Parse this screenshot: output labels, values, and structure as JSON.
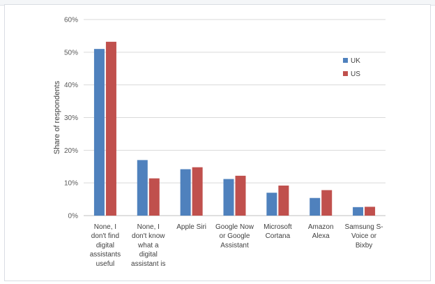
{
  "chart_data": {
    "type": "bar",
    "title": "",
    "xlabel": "",
    "ylabel": "Share of respondents",
    "ylim": [
      0,
      60
    ],
    "yticks": [
      0,
      10,
      20,
      30,
      40,
      50,
      60
    ],
    "ytick_labels": [
      "0%",
      "10%",
      "20%",
      "30%",
      "40%",
      "50%",
      "60%"
    ],
    "grid": true,
    "legend_position": "top-right",
    "categories": [
      [
        "None, I",
        "don't find",
        "digital",
        "assistants",
        "useful"
      ],
      [
        "None, I",
        "don't know",
        "what a",
        "digital",
        "assistant is"
      ],
      [
        "Apple Siri"
      ],
      [
        "Google Now",
        "or Google",
        "Assistant"
      ],
      [
        "Microsoft",
        "Cortana"
      ],
      [
        "Amazon",
        "Alexa"
      ],
      [
        "Samsung S-",
        "Voice or",
        "Bixby"
      ]
    ],
    "series": [
      {
        "name": "UK",
        "color": "#4f81bd",
        "values": [
          51,
          17,
          14.2,
          11.2,
          7,
          5.4,
          2.6
        ]
      },
      {
        "name": "US",
        "color": "#c0504d",
        "values": [
          53.2,
          11.4,
          14.8,
          12.2,
          9.2,
          7.8,
          2.7
        ]
      }
    ]
  }
}
